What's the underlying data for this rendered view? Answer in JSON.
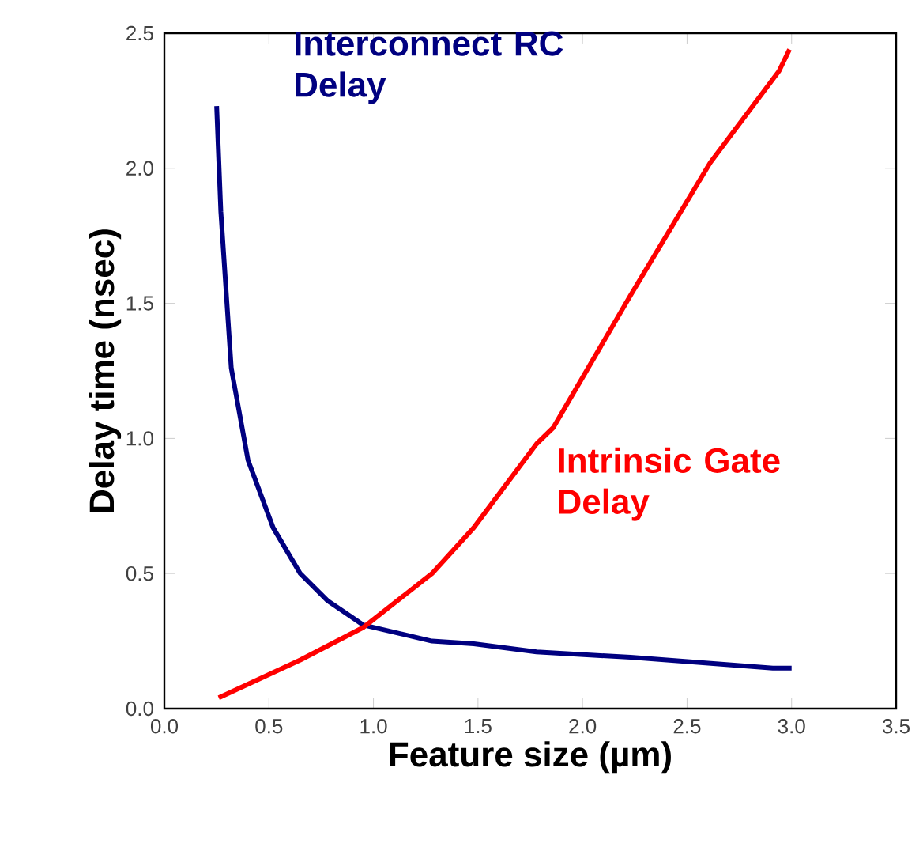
{
  "chart_data": {
    "type": "line",
    "xlabel": "Feature size (µm)",
    "ylabel": "Delay time (nsec)",
    "xlim": [
      0,
      3.5
    ],
    "ylim": [
      0,
      2.5
    ],
    "xticks": [
      {
        "value": 0,
        "label": "0.0"
      },
      0.5,
      {
        "value": 1,
        "label": "1.0"
      },
      1.5,
      {
        "value": 2,
        "label": "2.0"
      },
      2.5,
      {
        "value": 3,
        "label": "3.0"
      },
      3.5
    ],
    "yticks": [
      {
        "value": 0,
        "label": "0.0"
      },
      0.5,
      {
        "value": 1,
        "label": "1.0"
      },
      1.5,
      {
        "value": 2,
        "label": "2.0"
      },
      2.5
    ],
    "grid": false,
    "legend": false,
    "marker": "none",
    "line_style": "solid",
    "series": [
      {
        "name": "Interconnect RC Delay",
        "color": "#000080",
        "x": [
          0.25,
          0.27,
          0.32,
          0.4,
          0.52,
          0.65,
          0.78,
          0.95,
          1.28,
          1.48,
          1.78,
          2.23,
          2.91,
          3.0
        ],
        "values": [
          2.23,
          1.84,
          1.26,
          0.92,
          0.67,
          0.5,
          0.4,
          0.31,
          0.25,
          0.24,
          0.21,
          0.19,
          0.15,
          0.15
        ]
      },
      {
        "name": "Intrinsic Gate Delay",
        "color": "#ff0000",
        "x": [
          0.26,
          0.65,
          0.95,
          1.28,
          1.48,
          1.78,
          1.86,
          2.23,
          2.61,
          2.94,
          2.99
        ],
        "values": [
          0.04,
          0.18,
          0.3,
          0.5,
          0.67,
          0.98,
          1.04,
          1.53,
          2.02,
          2.36,
          2.44
        ]
      }
    ]
  }
}
